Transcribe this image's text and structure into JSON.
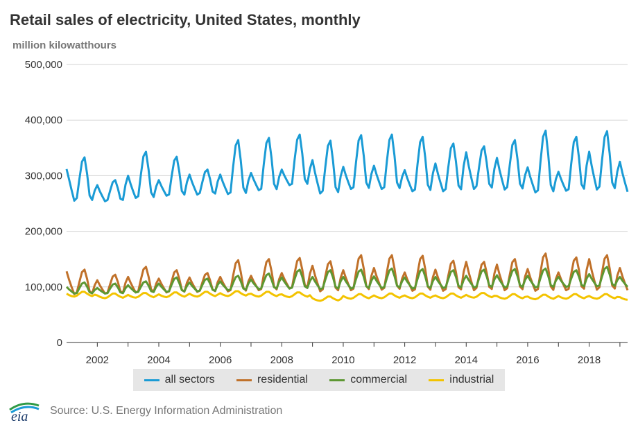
{
  "chart_data": {
    "type": "line",
    "title": "Retail sales of electricity, United States, monthly",
    "ylabel": "million kilowatthours",
    "ylim": [
      0,
      500000
    ],
    "yticks": [
      0,
      100000,
      200000,
      300000,
      400000,
      500000
    ],
    "ytick_labels": [
      "0",
      "100,000",
      "200,000",
      "300,000",
      "400,000",
      "500,000"
    ],
    "xticks": [
      2002,
      2004,
      2006,
      2008,
      2010,
      2012,
      2014,
      2016,
      2018
    ],
    "x_range": [
      "2001-01",
      "2019-04"
    ],
    "grid": "horizontal",
    "legend_placement": "bottom",
    "series": [
      {
        "name": "all sectors",
        "color": "#1a9bd5",
        "summer_peak": [
          333000,
          292000,
          343000,
          334000,
          311000,
          364000,
          368000,
          374000,
          363000,
          373000,
          374000,
          370000,
          358000,
          353000,
          364000,
          381000,
          370000,
          380000
        ],
        "winter_peak": [
          316000,
          283000,
          300000,
          292000,
          302000,
          302000,
          305000,
          311000,
          328000,
          316000,
          318000,
          310000,
          322000,
          342000,
          332000,
          315000,
          307000,
          343000,
          325000
        ],
        "trough": [
          255000,
          254000,
          260000,
          264000,
          266000,
          267000,
          274000,
          283000,
          268000,
          276000,
          276000,
          272000,
          272000,
          276000,
          275000,
          270000,
          273000,
          275000,
          271000
        ]
      },
      {
        "name": "residential",
        "color": "#c0712a",
        "summer_peak": [
          131000,
          122000,
          136000,
          130000,
          125000,
          148000,
          150000,
          152000,
          146000,
          157000,
          157000,
          156000,
          147000,
          145000,
          150000,
          160000,
          153000,
          157000
        ],
        "winter_peak": [
          128000,
          112000,
          118000,
          115000,
          117000,
          118000,
          120000,
          125000,
          138000,
          130000,
          134000,
          126000,
          131000,
          145000,
          140000,
          132000,
          126000,
          150000,
          134000
        ],
        "trough": [
          87000,
          88000,
          90000,
          90000,
          91000,
          92000,
          94000,
          97000,
          92000,
          94000,
          95000,
          93000,
          93000,
          94000,
          94000,
          93000,
          94000,
          95000,
          94000
        ]
      },
      {
        "name": "commercial",
        "color": "#5d9732",
        "summer_peak": [
          108000,
          106000,
          110000,
          117000,
          115000,
          120000,
          124000,
          131000,
          130000,
          131000,
          133000,
          132000,
          130000,
          131000,
          132000,
          133000,
          130000,
          136000
        ],
        "winter_peak": [
          100000,
          98000,
          103000,
          106000,
          108000,
          110000,
          113000,
          117000,
          118000,
          118000,
          119000,
          117000,
          118000,
          120000,
          121000,
          120000,
          118000,
          123000,
          118000
        ],
        "trough": [
          88000,
          88000,
          90000,
          91000,
          92000,
          94000,
          96000,
          97000,
          96000,
          97000,
          98000,
          97000,
          98000,
          99000,
          99000,
          99000,
          100000,
          101000,
          100000
        ]
      },
      {
        "name": "industrial",
        "color": "#f3c300",
        "level": [
          86000,
          83000,
          84000,
          85000,
          86000,
          87000,
          86000,
          85000,
          78000,
          82000,
          83000,
          83000,
          83000,
          84000,
          82000,
          81000,
          82000,
          82000,
          80000
        ]
      }
    ]
  },
  "legend": {
    "items": [
      "all sectors",
      "residential",
      "commercial",
      "industrial"
    ]
  },
  "footer": {
    "source": "Source: U.S. Energy Information Administration",
    "logo_text": "eia"
  }
}
